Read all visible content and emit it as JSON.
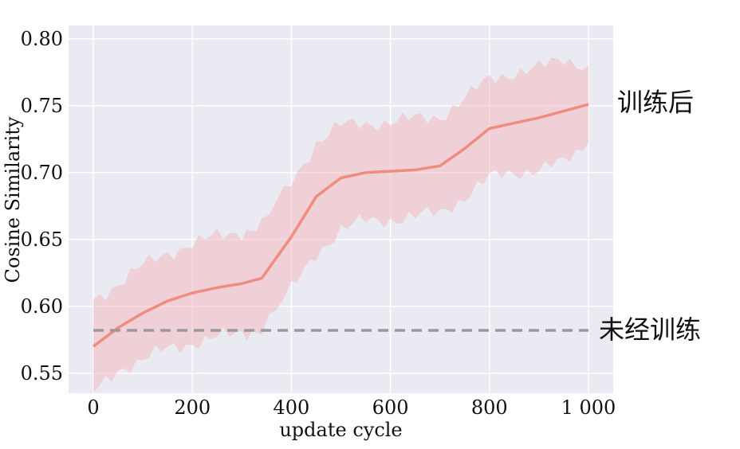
{
  "chart_data": {
    "type": "line",
    "title": "",
    "xlabel": "update cycle",
    "ylabel": "Cosine Similarity",
    "xlim": [
      -50,
      1050
    ],
    "ylim": [
      0.535,
      0.81
    ],
    "x_ticks": [
      0,
      200,
      400,
      600,
      800,
      1000
    ],
    "x_tick_labels": [
      "0",
      "200",
      "400",
      "600",
      "800",
      "1 000"
    ],
    "y_ticks": [
      0.55,
      0.6,
      0.65,
      0.7,
      0.75,
      0.8
    ],
    "y_tick_labels": [
      "0.55",
      "0.60",
      "0.65",
      "0.70",
      "0.75",
      "0.80"
    ],
    "grid": true,
    "background": "#eaeaf2",
    "series": [
      {
        "kind": "line",
        "color": "#f28b7d",
        "x": [
          0,
          50,
          100,
          150,
          200,
          250,
          300,
          340,
          400,
          450,
          500,
          550,
          600,
          650,
          700,
          750,
          800,
          850,
          900,
          950,
          1000
        ],
        "values": [
          0.57,
          0.584,
          0.595,
          0.604,
          0.61,
          0.614,
          0.617,
          0.621,
          0.652,
          0.682,
          0.696,
          0.7,
          0.701,
          0.702,
          0.705,
          0.718,
          0.733,
          0.737,
          0.741,
          0.746,
          0.751
        ]
      },
      {
        "kind": "band",
        "color": "#f4b6b9",
        "x": [
          0,
          50,
          100,
          150,
          200,
          250,
          300,
          340,
          400,
          450,
          500,
          550,
          600,
          650,
          700,
          750,
          800,
          850,
          900,
          950,
          1000
        ],
        "lower": [
          0.535,
          0.553,
          0.56,
          0.568,
          0.573,
          0.577,
          0.579,
          0.584,
          0.612,
          0.64,
          0.657,
          0.664,
          0.665,
          0.667,
          0.67,
          0.682,
          0.696,
          0.7,
          0.703,
          0.707,
          0.722
        ],
        "upper": [
          0.605,
          0.617,
          0.63,
          0.64,
          0.647,
          0.652,
          0.656,
          0.66,
          0.693,
          0.722,
          0.735,
          0.737,
          0.738,
          0.74,
          0.742,
          0.755,
          0.77,
          0.775,
          0.778,
          0.785,
          0.78
        ]
      },
      {
        "kind": "dashed",
        "color": "#999999",
        "x": [
          0,
          1000
        ],
        "values": [
          0.582,
          0.582
        ]
      }
    ],
    "annotations": [
      {
        "text": "训练后",
        "anchor_y": 0.7525
      },
      {
        "text": "未经训练",
        "anchor_y": 0.5825
      }
    ]
  }
}
